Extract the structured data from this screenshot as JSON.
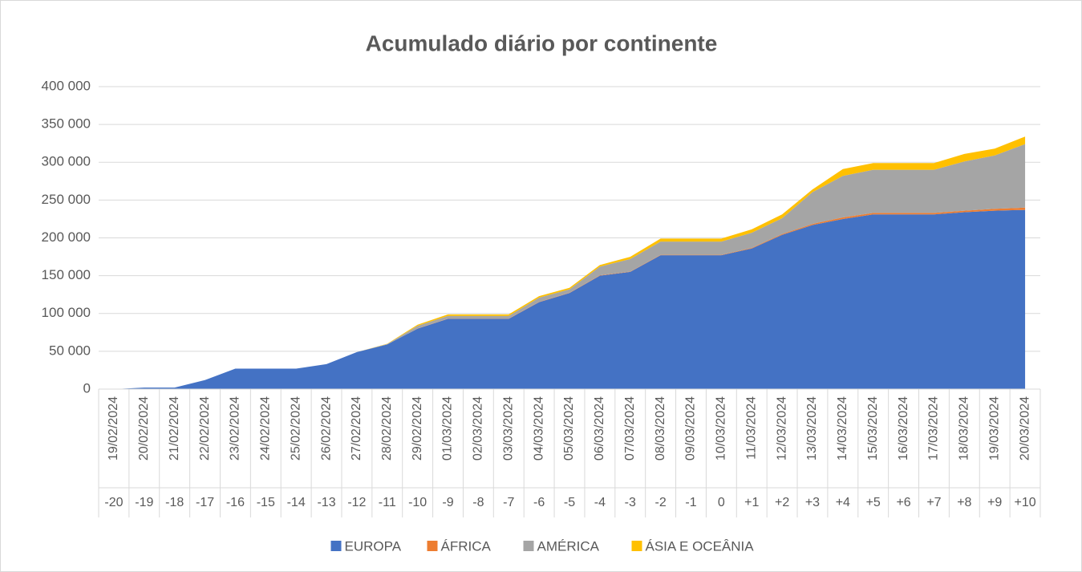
{
  "chart_data": {
    "type": "stacked_area",
    "title": "Acumulado diário por continente",
    "categories": [
      "19/02/2024",
      "20/02/2024",
      "21/02/2024",
      "22/02/2024",
      "23/02/2024",
      "24/02/2024",
      "25/02/2024",
      "26/02/2024",
      "27/02/2024",
      "28/02/2024",
      "29/02/2024",
      "01/03/2024",
      "02/03/2024",
      "03/03/2024",
      "04/03/2024",
      "05/03/2024",
      "06/03/2024",
      "07/03/2024",
      "08/03/2024",
      "09/03/2024",
      "10/03/2024",
      "11/03/2024",
      "12/03/2024",
      "13/03/2024",
      "14/03/2024",
      "15/03/2024",
      "16/03/2024",
      "17/03/2024",
      "18/03/2024",
      "19/03/2024",
      "20/03/2024"
    ],
    "day_offsets": [
      "-20",
      "-19",
      "-18",
      "-17",
      "-16",
      "-15",
      "-14",
      "-13",
      "-12",
      "-11",
      "-10",
      "-9",
      "-8",
      "-7",
      "-6",
      "-5",
      "-4",
      "-3",
      "-2",
      "-1",
      "0",
      "+1",
      "+2",
      "+3",
      "+4",
      "+5",
      "+6",
      "+7",
      "+8",
      "+9",
      "+10"
    ],
    "series": [
      {
        "name": "EUROPA",
        "color": "#4472c4",
        "values": [
          0,
          2000,
          2000,
          12000,
          27000,
          27000,
          27000,
          33000,
          49000,
          59000,
          80000,
          93000,
          93000,
          93000,
          115000,
          127000,
          150000,
          155000,
          177000,
          177000,
          177000,
          186000,
          204000,
          217000,
          225000,
          231000,
          231000,
          231000,
          234000,
          236000,
          237000
        ]
      },
      {
        "name": "ÁFRICA",
        "color": "#ed7d31",
        "values": [
          0,
          0,
          0,
          0,
          0,
          0,
          0,
          0,
          0,
          0,
          200,
          300,
          300,
          300,
          400,
          400,
          500,
          500,
          600,
          600,
          600,
          800,
          1000,
          1500,
          2000,
          2000,
          2000,
          2000,
          2000,
          2500,
          3000
        ]
      },
      {
        "name": "AMÉRICA",
        "color": "#a5a5a5",
        "values": [
          0,
          0,
          0,
          0,
          0,
          0,
          0,
          0,
          0,
          500,
          3500,
          3500,
          3500,
          3500,
          5500,
          4500,
          11500,
          16500,
          17500,
          17500,
          17500,
          20000,
          21000,
          42000,
          55000,
          57000,
          57000,
          57000,
          65000,
          70500,
          84000
        ]
      },
      {
        "name": "ÁSIA E OCEÂNIA",
        "color": "#ffc000",
        "values": [
          0,
          0,
          0,
          0,
          0,
          0,
          0,
          0,
          0,
          500,
          1500,
          2000,
          2000,
          2000,
          2000,
          2000,
          2000,
          3000,
          4000,
          4000,
          4000,
          4500,
          5000,
          3500,
          9000,
          9000,
          9000,
          9000,
          10000,
          9000,
          10000
        ]
      }
    ],
    "ylim": [
      0,
      400000
    ],
    "yticks": [
      0,
      {
        "value": 50000,
        "label": "50 000"
      },
      {
        "value": 100000,
        "label": "100 000"
      },
      {
        "value": 150000,
        "label": "150 000"
      },
      {
        "value": 200000,
        "label": "200 000"
      },
      {
        "value": 250000,
        "label": "250 000"
      },
      {
        "value": 300000,
        "label": "300 000"
      },
      {
        "value": 350000,
        "label": "350 000"
      },
      {
        "value": 400000,
        "label": "400 000"
      }
    ],
    "grid": true,
    "legend": "bottom"
  }
}
